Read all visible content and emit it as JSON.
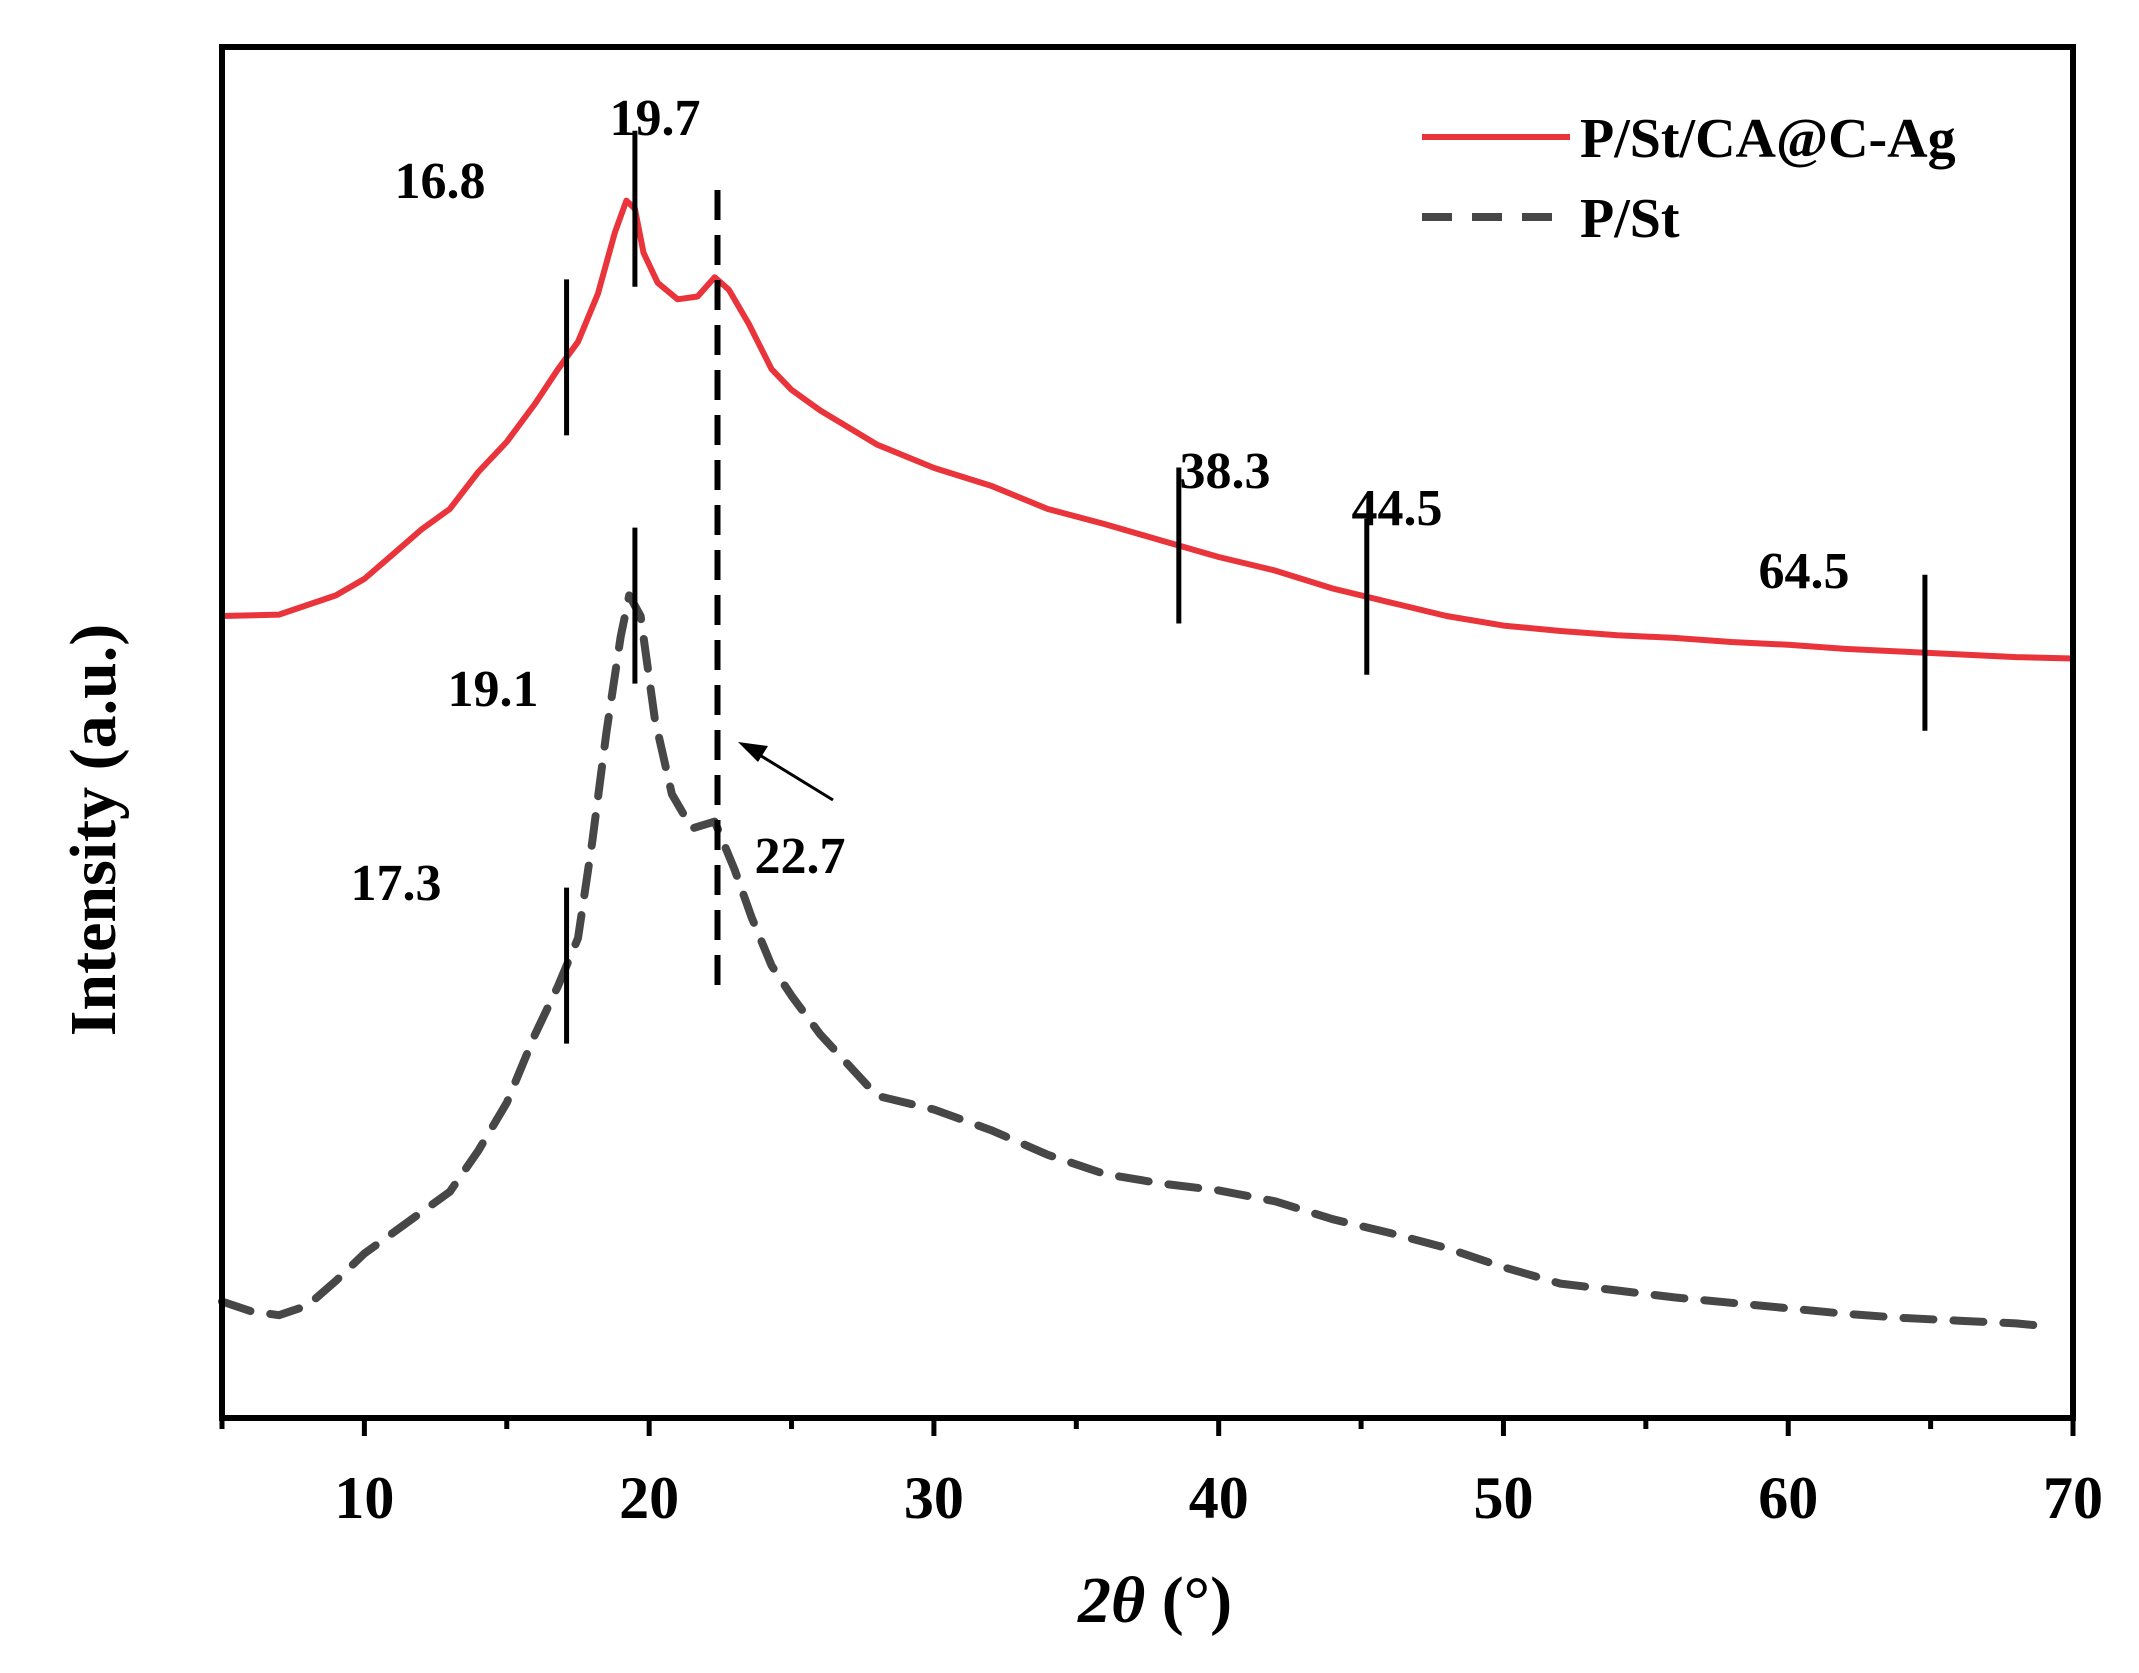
{
  "chart_data": {
    "type": "line",
    "title": "",
    "xlabel_prefix": "2",
    "xlabel_symbol": "θ",
    "xlabel_unit": " (°)",
    "ylabel": "Intensity (a.u.)",
    "xlim": [
      5,
      70
    ],
    "ylim": [
      0,
      100
    ],
    "x_ticks": [
      10,
      20,
      30,
      40,
      50,
      60,
      70
    ],
    "x_tick_labels": [
      "10",
      "20",
      "30",
      "40",
      "50",
      "60",
      "70"
    ],
    "grid": false,
    "legend_position": "top-right",
    "series": [
      {
        "name": "P/St/CA@C-Ag",
        "color": "#e8343a",
        "style": "solid",
        "x": [
          5,
          7,
          9,
          10,
          11,
          12,
          13,
          14,
          15,
          16,
          16.8,
          17.5,
          18.2,
          18.8,
          19.2,
          19.5,
          19.8,
          20.3,
          21,
          21.7,
          22.3,
          22.8,
          23.5,
          24.3,
          25,
          26,
          28,
          30,
          32,
          34,
          36,
          38,
          40,
          42,
          44,
          46,
          48,
          50,
          52,
          54,
          56,
          58,
          60,
          62,
          64,
          66,
          68,
          70
        ],
        "y": [
          58.5,
          58.6,
          60,
          61.2,
          63,
          64.8,
          66.3,
          69,
          71.2,
          74,
          76.5,
          78.5,
          82,
          86.5,
          88.8,
          88.2,
          85,
          82.8,
          81.6,
          81.8,
          83.2,
          82.3,
          79.8,
          76.5,
          75,
          73.5,
          71,
          69.3,
          68,
          66.3,
          65.2,
          64,
          62.8,
          61.8,
          60.5,
          59.5,
          58.5,
          57.8,
          57.4,
          57.1,
          56.9,
          56.6,
          56.4,
          56.1,
          55.9,
          55.7,
          55.5,
          55.4
        ]
      },
      {
        "name": "P/St",
        "color": "#474747",
        "style": "dashed",
        "x": [
          5,
          6,
          7,
          8,
          9,
          10,
          11,
          12,
          13,
          14,
          15,
          16,
          16.8,
          17.5,
          18,
          18.5,
          19,
          19.3,
          19.7,
          20.2,
          20.8,
          21.5,
          22.3,
          23,
          23.6,
          24.3,
          25,
          26,
          28,
          30,
          32,
          34,
          36,
          38,
          40,
          42,
          44,
          46,
          48,
          50,
          52,
          54,
          56,
          58,
          60,
          62,
          64,
          66,
          68,
          69
        ],
        "y": [
          8.5,
          7.8,
          7.5,
          8.2,
          10,
          12,
          13.5,
          15,
          16.5,
          19.5,
          23,
          28,
          31.5,
          35,
          42,
          50,
          57,
          60,
          58.5,
          51,
          45.5,
          43,
          43.5,
          40,
          36.5,
          33,
          30.8,
          28,
          23.5,
          22.5,
          21,
          19.2,
          17.8,
          17.1,
          16.6,
          15.8,
          14.5,
          13.5,
          12.4,
          11,
          9.8,
          9.3,
          8.8,
          8.4,
          8,
          7.6,
          7.3,
          7.1,
          6.9,
          6.7
        ]
      }
    ],
    "annotations": [
      {
        "label": "19.7",
        "series": "P/St/CA@C-Ag",
        "marker_x": 19.5
      },
      {
        "label": "16.8",
        "series": "P/St/CA@C-Ag",
        "marker_x": 17.1
      },
      {
        "label": "38.3",
        "series": "P/St/CA@C-Ag",
        "marker_x": 38.6
      },
      {
        "label": "44.5",
        "series": "P/St/CA@C-Ag",
        "marker_x": 45.2
      },
      {
        "label": "64.5",
        "series": "P/St/CA@C-Ag",
        "marker_x": 64.8
      },
      {
        "label": "19.1",
        "series": "P/St",
        "marker_x": 19.5
      },
      {
        "label": "17.3",
        "series": "P/St",
        "marker_x": 17.1
      },
      {
        "label": "22.7",
        "series": "both",
        "marker_x": 22.4
      }
    ]
  }
}
